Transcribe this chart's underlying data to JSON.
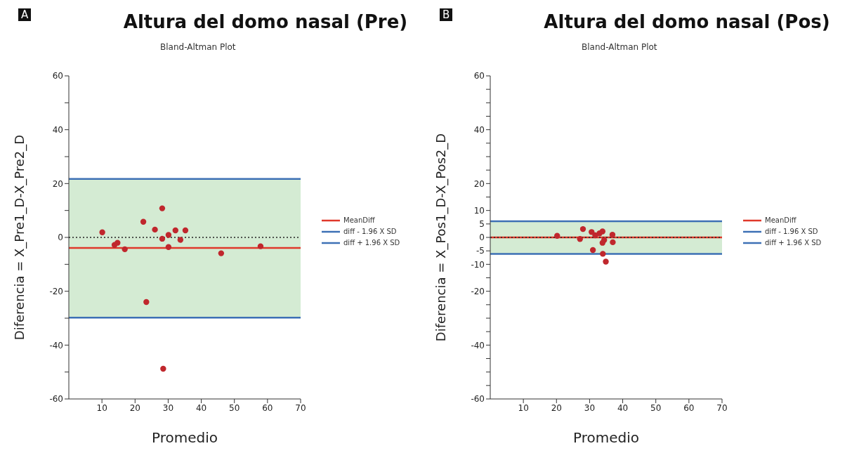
{
  "chart_data": [
    {
      "type": "scatter",
      "title": "Altura del domo nasal (Pre)",
      "subtitle": "Bland-Altman Plot",
      "xlabel": "Promedio",
      "ylabel": "Diferencia = X_Pre1_D-X_Pre2_D",
      "annotations": [
        "A"
      ],
      "x": [
        10.1,
        13.8,
        14.7,
        16.9,
        22.5,
        26.0,
        28.2,
        28.2,
        30.1,
        32.2,
        35.2,
        33.7,
        30.1,
        23.4,
        28.5,
        46.0,
        57.9
      ],
      "series": [
        {
          "color": "#c0272d",
          "values": [
            1.9,
            -2.8,
            -2.0,
            -4.4,
            5.8,
            2.9,
            10.8,
            -0.5,
            0.9,
            2.6,
            2.6,
            -0.9,
            -3.6,
            -24.0,
            -48.8,
            -5.9,
            -3.3
          ]
        }
      ],
      "marker": "circle",
      "xlim": [
        0,
        70
      ],
      "xticks": [
        10,
        20,
        30,
        40,
        50,
        60,
        70
      ],
      "ylim": [
        -60,
        60
      ],
      "yticks": [
        -60,
        {
          "value": -50,
          "label": null
        },
        -40,
        {
          "value": -30,
          "label": null
        },
        -20,
        {
          "value": -10,
          "label": null
        },
        0,
        {
          "value": 10,
          "label": null
        },
        20,
        {
          "value": 30,
          "label": null
        },
        40,
        {
          "value": 50,
          "label": null
        },
        60
      ],
      "grid": false,
      "legend": "right",
      "bands": [
        {
          "axis": "y",
          "from": -29.8,
          "to": 21.7,
          "color": "#d4ebd3"
        }
      ],
      "ref_lines": [
        {
          "axis": "y",
          "value": 0,
          "color": "#222222",
          "line_style": "dotted"
        },
        {
          "axis": "y",
          "value": -3.9,
          "label": "MeanDiff",
          "color": "#e0382b",
          "line_style": "solid"
        },
        {
          "axis": "y",
          "value": -29.8,
          "label": "diff - 1.96 X SD",
          "color": "#3d70b5",
          "line_style": "solid"
        },
        {
          "axis": "y",
          "value": 21.7,
          "label": "diff + 1.96 X SD",
          "color": "#3d70b5",
          "line_style": "solid"
        }
      ]
    },
    {
      "type": "scatter",
      "title": "Altura del domo nasal (Pos)",
      "subtitle": "Bland-Altman Plot",
      "xlabel": "Promedio",
      "ylabel": "Diferencia = X_Pos1_D-X_Pos2_D",
      "annotations": [
        "B"
      ],
      "x": [
        20.2,
        28.0,
        27.1,
        30.6,
        31.2,
        32.1,
        33.0,
        33.9,
        36.9,
        37.0,
        34.4,
        33.9,
        31.0,
        34.0,
        34.9,
        31.7
      ],
      "series": [
        {
          "color": "#c0272d",
          "values": [
            0.6,
            3.1,
            -0.6,
            2.0,
            null,
            null,
            1.5,
            2.2,
            1.0,
            -1.8,
            -1.0,
            -2.0,
            -4.7,
            -6.1,
            -9.0,
            0.8
          ]
        }
      ],
      "marker": "circle",
      "xlim": [
        0,
        70
      ],
      "xticks": [
        10,
        20,
        30,
        40,
        50,
        60,
        70
      ],
      "ylim": [
        -60,
        60
      ],
      "yticks": [
        -60,
        {
          "value": -55,
          "label": null
        },
        {
          "value": -50,
          "label": null
        },
        {
          "value": -45,
          "label": null
        },
        -40,
        {
          "value": -35,
          "label": null
        },
        {
          "value": -30,
          "label": null
        },
        {
          "value": -25,
          "label": null
        },
        -20,
        {
          "value": -15,
          "label": null
        },
        -10,
        -5,
        0,
        5,
        10,
        {
          "value": 15,
          "label": null
        },
        20,
        {
          "value": 25,
          "label": null
        },
        {
          "value": 30,
          "label": null
        },
        {
          "value": 35,
          "label": null
        },
        40,
        {
          "value": 45,
          "label": null
        },
        {
          "value": 50,
          "label": null
        },
        {
          "value": 55,
          "label": null
        },
        60
      ],
      "grid": false,
      "legend": "right",
      "bands": [
        {
          "axis": "y",
          "from": -6.1,
          "to": 6.0,
          "color": "#d4ebd3"
        }
      ],
      "ref_lines": [
        {
          "axis": "y",
          "value": 0,
          "label": "MeanDiff",
          "color": "#e0382b",
          "line_style": "solid"
        },
        {
          "axis": "y",
          "value": 0,
          "color": "#222222",
          "line_style": "dotted"
        },
        {
          "axis": "y",
          "value": -6.1,
          "label": "diff - 1.96 X SD",
          "color": "#3d70b5",
          "line_style": "solid"
        },
        {
          "axis": "y",
          "value": 6.0,
          "label": "diff + 1.96 X SD",
          "color": "#3d70b5",
          "line_style": "solid"
        }
      ]
    }
  ]
}
